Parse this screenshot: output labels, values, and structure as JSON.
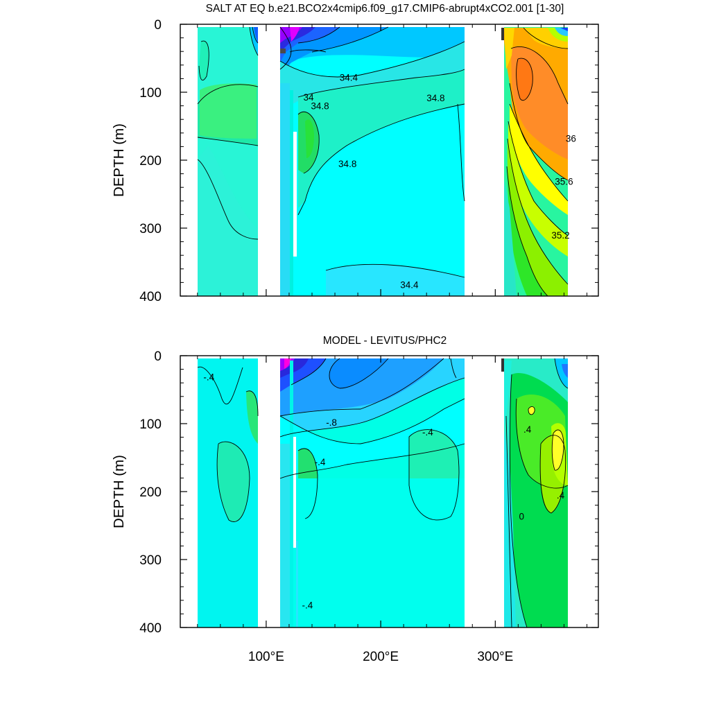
{
  "chart_data": [
    {
      "type": "contour",
      "title": "SALT AT EQ b.e21.BCO2x4cmip6.f09_g17.CMIP6-abrupt4xCO2.001 [1-30]",
      "ylabel": "DEPTH (m)",
      "xlabel": "",
      "xlim": [
        25,
        390
      ],
      "ylim": [
        400,
        0
      ],
      "y_ticks": [
        "0",
        "100",
        "200",
        "300",
        "400"
      ],
      "x_ticks": [],
      "contour_labels": [
        {
          "text": "34.4",
          "x": 172,
          "y": 78
        },
        {
          "text": "34.8",
          "x": 248,
          "y": 108
        },
        {
          "text": "34",
          "x": 137,
          "y": 107
        },
        {
          "text": "34.8",
          "x": 147,
          "y": 120
        },
        {
          "text": "34.8",
          "x": 171,
          "y": 205
        },
        {
          "text": "36",
          "x": 366,
          "y": 168
        },
        {
          "text": "35.6",
          "x": 360,
          "y": 231
        },
        {
          "text": "35.2",
          "x": 357,
          "y": 310
        },
        {
          "text": "34.4",
          "x": 225,
          "y": 383
        }
      ]
    },
    {
      "type": "contour",
      "title": "MODEL - LEVITUS/PHC2",
      "ylabel": "DEPTH (m)",
      "xlabel": "",
      "xlim": [
        25,
        390
      ],
      "ylim": [
        400,
        0
      ],
      "y_ticks": [
        "0",
        "100",
        "200",
        "300",
        "400"
      ],
      "x_ticks": [
        "100°E",
        "200°E",
        "300°E"
      ],
      "contour_labels": [
        {
          "text": "-.4",
          "x": 50,
          "y": 31
        },
        {
          "text": "-.8",
          "x": 157,
          "y": 98
        },
        {
          "text": "-.4",
          "x": 241,
          "y": 112
        },
        {
          "text": "-.4",
          "x": 147,
          "y": 156
        },
        {
          "text": ".4",
          "x": 328,
          "y": 108
        },
        {
          "text": ".4",
          "x": 357,
          "y": 205
        },
        {
          "text": "0",
          "x": 323,
          "y": 236
        },
        {
          "text": "-.4",
          "x": 136,
          "y": 367
        }
      ]
    }
  ]
}
